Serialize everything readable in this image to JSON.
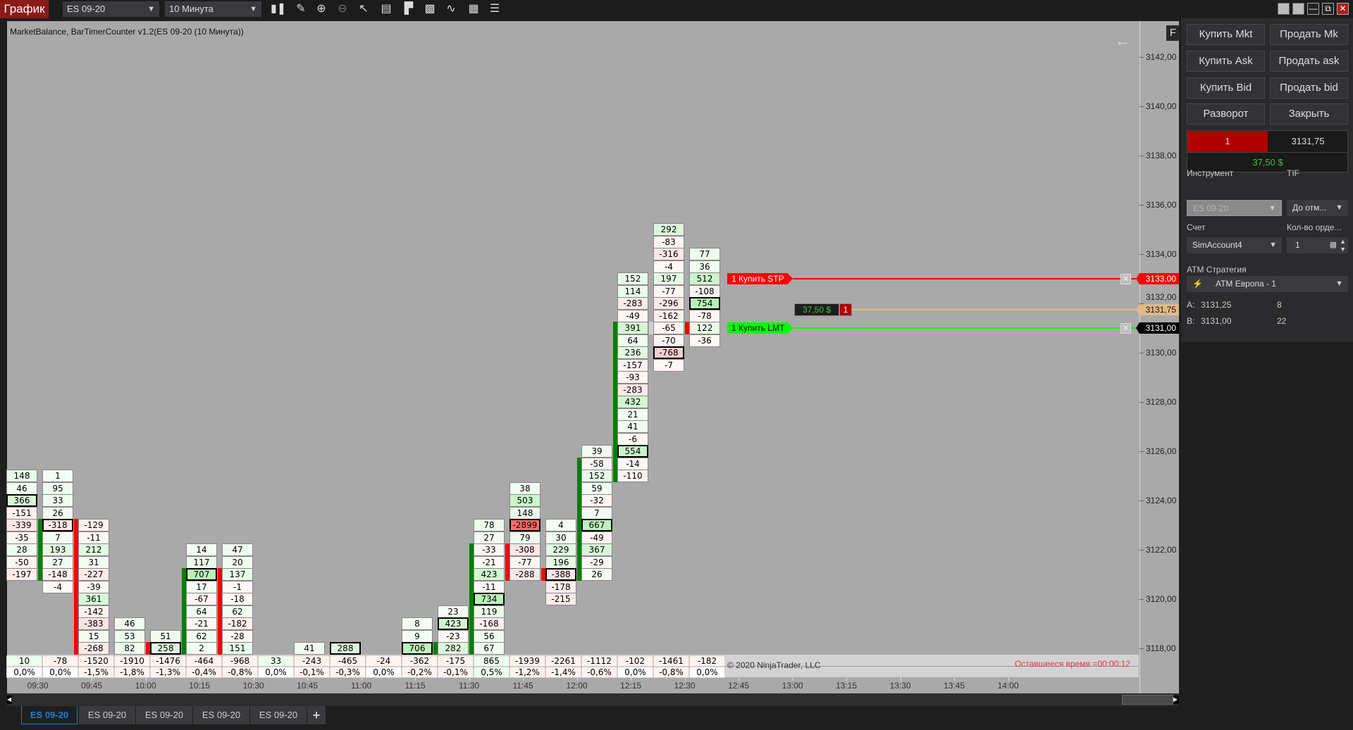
{
  "toolbar": {
    "title": "График",
    "instrument": "ES 09-20",
    "interval": "10 Минута",
    "icons": [
      "bar-type-icon",
      "drawing-tools-icon",
      "zoom-in-icon",
      "zoom-out-icon",
      "pointer-icon",
      "data-box-icon",
      "chart-trader-icon",
      "indicators-icon",
      "strategies-icon",
      "properties-icon",
      "templates-icon"
    ]
  },
  "chart": {
    "indicator_label": "MarketBalance, BarTimerCounter v1.2(ES 09-20 (10 Минута))",
    "f_button": "F",
    "copyright": "© 2020 NinjaTrader, LLC",
    "remaining_time": "Оставшееся время =00:00:12",
    "price_labels": [
      "3142,00",
      "3140,00",
      "3138,00",
      "3136,00",
      "3134,00",
      "3132,00",
      "3130,00",
      "3128,00",
      "3126,00",
      "3124,00",
      "3122,00",
      "3120,00",
      "3118,00"
    ],
    "time_labels": [
      "09:30",
      "09:45",
      "10:00",
      "10:15",
      "10:30",
      "10:45",
      "11:00",
      "11:15",
      "11:30",
      "11:45",
      "12:00",
      "12:15",
      "12:30",
      "12:45",
      "13:00",
      "13:15",
      "13:30",
      "13:45",
      "14:00"
    ],
    "colors": {
      "bg": "#a9a9a9",
      "buy_strip": "#008000",
      "sell_strip": "#ff0000",
      "doji_strip": "#d0d0d0"
    },
    "columns": [
      {
        "top": 3125,
        "values": [
          148,
          46,
          366,
          -151,
          -339,
          -35,
          28,
          -50,
          -197
        ],
        "poc": 366
      },
      {
        "top": 3125,
        "values": [
          1,
          95,
          33,
          26,
          -318,
          7,
          193,
          27,
          -148,
          -4
        ],
        "poc": -318,
        "strip": {
          "color": "green",
          "from": 3123,
          "to": 3121
        }
      },
      {
        "top": 3123,
        "values": [
          -129,
          -11,
          212,
          31,
          -227,
          -39,
          361,
          -142,
          -383,
          15,
          -268
        ],
        "strip": {
          "color": "red",
          "from": 3123,
          "to": 3118
        }
      },
      {
        "top": 3119,
        "values": [
          46,
          53,
          82
        ]
      },
      {
        "top": 3118.5,
        "values": [
          51,
          258
        ],
        "poc": 258,
        "strip": {
          "color": "red",
          "from": 3118,
          "to": 3118
        }
      },
      {
        "top": 3122,
        "values": [
          14,
          117,
          707,
          17,
          -67,
          64,
          -21,
          62,
          2
        ],
        "poc": 707,
        "strip": {
          "color": "green",
          "from": 3121,
          "to": 3118
        }
      },
      {
        "top": 3122,
        "values": [
          47,
          20,
          137,
          -1,
          -18,
          62,
          -182,
          -28,
          151
        ],
        "strip": {
          "color": "red",
          "from": 3121,
          "to": 3118
        }
      },
      {
        "top": 3118,
        "values": []
      },
      {
        "top": 3118,
        "values": [
          41
        ]
      },
      {
        "top": 3118,
        "values": [
          288
        ],
        "poc": 288
      },
      {
        "top": 3118,
        "values": []
      },
      {
        "top": 3119,
        "values": [
          8,
          9,
          706
        ],
        "poc": 706
      },
      {
        "top": 3119.5,
        "values": [
          23,
          423,
          -23,
          282
        ],
        "poc": 423,
        "strip": {
          "color": "green",
          "from": 3118,
          "to": 3118
        }
      },
      {
        "top": 3123,
        "values": [
          78,
          27,
          -33,
          -21,
          423,
          -11,
          734,
          119,
          -168,
          56,
          67
        ],
        "poc": 734,
        "strip": {
          "color": "green",
          "from": 3122,
          "to": 3118
        }
      },
      {
        "top": 3124.5,
        "values": [
          38,
          503,
          148,
          -2899,
          79,
          -308,
          -77,
          -288
        ],
        "poc": -2899,
        "strip": {
          "color": "red",
          "from": 3122,
          "to": 3121
        }
      },
      {
        "top": 3123,
        "values": [
          4,
          30,
          229,
          196,
          -388,
          -178,
          -215
        ],
        "poc": -388,
        "strip": {
          "color": "red",
          "from": 3121,
          "to": 3121
        }
      },
      {
        "top": 3126,
        "values": [
          39,
          -58,
          152,
          59,
          -32,
          7,
          667,
          -49,
          367,
          -29,
          26
        ],
        "poc": 667,
        "strip": {
          "color": "green",
          "from": 3125.5,
          "to": 3121
        }
      },
      {
        "top": 3133,
        "values": [
          152,
          114,
          -283,
          -49,
          391,
          64,
          236,
          -157,
          -93,
          -283,
          432,
          21,
          41,
          -6,
          554,
          -14,
          -110
        ],
        "poc": 554,
        "strip": {
          "color": "green",
          "from": 3131,
          "to": 3125
        }
      },
      {
        "top": 3135,
        "values": [
          292,
          -83,
          -316,
          -4,
          197,
          -77,
          -296,
          -162,
          -65,
          -70,
          -768,
          -7
        ],
        "poc": -768,
        "strip": {
          "color": "gray",
          "from": 3131,
          "to": 3131
        }
      },
      {
        "top": 3134,
        "values": [
          77,
          36,
          512,
          -108,
          754,
          -78,
          122,
          -36
        ],
        "poc": 754,
        "strip": {
          "color": "red",
          "from": 3131,
          "to": 3131
        }
      }
    ],
    "summary_delta": [
      "10",
      "-78",
      "-1520",
      "-1910",
      "-1476",
      "-464",
      "-968",
      "33",
      "-243",
      "-465",
      "-24",
      "-362",
      "-175",
      "865",
      "-1939",
      "-2261",
      "-1112",
      "-102",
      "-1461",
      "-182"
    ],
    "summary_pct": [
      "0,0%",
      "0,0%",
      "-1,5%",
      "-1,8%",
      "-1,3%",
      "-0,4%",
      "-0,8%",
      "0,0%",
      "-0,1%",
      "-0,3%",
      "0,0%",
      "-0,2%",
      "-0,1%",
      "0,5%",
      "-1,2%",
      "-1,4%",
      "-0,6%",
      "0,0%",
      "-0,8%",
      "0,0%"
    ],
    "orders": {
      "stop": {
        "label": "1  Купить STP",
        "price": "3133,00",
        "color": "#ff0000"
      },
      "limit": {
        "label": "1  Купить LMT",
        "price": "3131,00",
        "color": "#00ff00"
      },
      "position": {
        "pnl": "37,50 $",
        "qty": "1",
        "price": "3131,75",
        "color": "#e0b98a"
      }
    }
  },
  "panel": {
    "buttons": [
      "Купить Mkt",
      "Продать Mk",
      "Купить Ask",
      "Продать ask",
      "Купить Bid",
      "Продать bid",
      "Разворот",
      "Закрыть"
    ],
    "position_qty": "1",
    "position_price": "3131,75",
    "pnl": "37,50 $",
    "instrument_label": "Инструмент",
    "instrument_value": "ES 09-20",
    "tif_label": "TIF",
    "tif_value": "До отм...",
    "account_label": "Счет",
    "account_value": "SimAccount4",
    "qty_label": "Кол-во орде...",
    "qty_value": "1",
    "atm_label": "ATM Стратегия",
    "atm_value": "ATM Европа - 1",
    "ask_label": "A:",
    "ask_price": "3131,25",
    "ask_size": "8",
    "bid_label": "B:",
    "bid_price": "3131,00",
    "bid_size": "22"
  },
  "tabs": [
    "ES 09-20",
    "ES 09-20",
    "ES 09-20",
    "ES 09-20",
    "ES 09-20"
  ],
  "add_tab": "+"
}
